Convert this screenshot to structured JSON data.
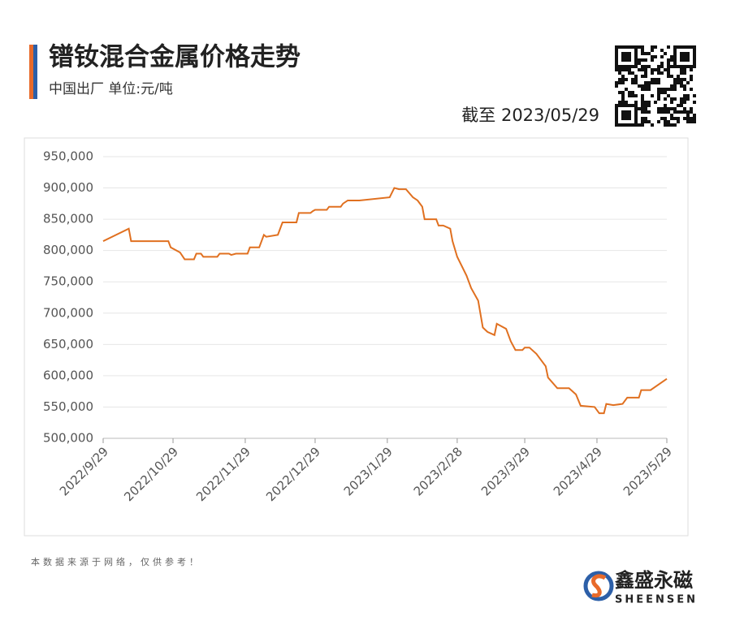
{
  "chart_data": {
    "type": "line",
    "title": "镨钕混合金属价格走势",
    "subtitle": "中国出厂 单位:元/吨",
    "as_of": "截至 2023/05/29",
    "source_note": "本数据来源于网络，仅供参考！",
    "brand_name": "鑫盛永磁",
    "brand_latin": "SHEENSEN",
    "x": [
      "2022/9/29",
      "2022/10/10",
      "2022/10/11",
      "2022/10/27",
      "2022/10/28",
      "2022/11/1",
      "2022/11/3",
      "2022/11/7",
      "2022/11/8",
      "2022/11/10",
      "2022/11/11",
      "2022/11/17",
      "2022/11/18",
      "2022/11/22",
      "2022/11/23",
      "2022/11/25",
      "2022/11/30",
      "2022/12/1",
      "2022/12/5",
      "2022/12/7",
      "2022/12/8",
      "2022/12/13",
      "2022/12/15",
      "2022/12/21",
      "2022/12/22",
      "2022/12/27",
      "2022/12/28",
      "2022/12/29",
      "2023/1/3",
      "2023/1/4",
      "2023/1/9",
      "2023/1/10",
      "2023/1/12",
      "2023/1/17",
      "2023/1/30",
      "2023/2/1",
      "2023/2/3",
      "2023/2/6",
      "2023/2/9",
      "2023/2/11",
      "2023/2/13",
      "2023/2/14",
      "2023/2/19",
      "2023/2/20",
      "2023/2/22",
      "2023/2/25",
      "2023/2/26",
      "2023/2/28",
      "2023/3/4",
      "2023/3/6",
      "2023/3/9",
      "2023/3/11",
      "2023/3/13",
      "2023/3/16",
      "2023/3/17",
      "2023/3/21",
      "2023/3/23",
      "2023/3/25",
      "2023/3/28",
      "2023/3/29",
      "2023/3/31",
      "2023/4/3",
      "2023/4/7",
      "2023/4/8",
      "2023/4/12",
      "2023/4/17",
      "2023/4/20",
      "2023/4/22",
      "2023/4/28",
      "2023/4/30",
      "2023/5/2",
      "2023/5/3",
      "2023/5/6",
      "2023/5/10",
      "2023/5/12",
      "2023/5/17",
      "2023/5/18",
      "2023/5/22",
      "2023/5/29"
    ],
    "series": [
      {
        "name": "镨钕混合金属",
        "color": "#e07020",
        "values": [
          815000,
          835000,
          815000,
          815000,
          805000,
          797000,
          786000,
          786000,
          795000,
          795000,
          790000,
          790000,
          795000,
          795000,
          793000,
          795000,
          795000,
          805000,
          805000,
          825000,
          822000,
          825000,
          845000,
          845000,
          860000,
          860000,
          863000,
          865000,
          865000,
          870000,
          870000,
          875000,
          880000,
          880000,
          885000,
          900000,
          898000,
          898000,
          885000,
          880000,
          870000,
          850000,
          850000,
          840000,
          840000,
          835000,
          815000,
          790000,
          760000,
          740000,
          720000,
          677000,
          670000,
          665000,
          683000,
          675000,
          655000,
          641000,
          641000,
          645000,
          645000,
          635000,
          615000,
          597000,
          580000,
          580000,
          570000,
          552000,
          550000,
          540000,
          540000,
          555000,
          553000,
          555000,
          565000,
          565000,
          577000,
          577000,
          595000
        ]
      }
    ],
    "xlim": [
      "2022/9/29",
      "2023/5/29"
    ],
    "xticks": [
      "2022/9/29",
      "2022/10/29",
      "2022/11/29",
      "2022/12/29",
      "2023/1/29",
      "2023/2/28",
      "2023/3/29",
      "2023/4/29",
      "2023/5/29"
    ],
    "ylim": [
      500000,
      950000
    ],
    "yticks": [
      {
        "value": 500000,
        "label": "500,000"
      },
      {
        "value": 550000,
        "label": "550,000"
      },
      {
        "value": 600000,
        "label": "600,000"
      },
      {
        "value": 650000,
        "label": "650,000"
      },
      {
        "value": 700000,
        "label": "700,000"
      },
      {
        "value": 750000,
        "label": "750,000"
      },
      {
        "value": 800000,
        "label": "800,000"
      },
      {
        "value": 850000,
        "label": "850,000"
      },
      {
        "value": 900000,
        "label": "900,000"
      },
      {
        "value": 950000,
        "label": "950,000"
      }
    ],
    "grid": true
  }
}
